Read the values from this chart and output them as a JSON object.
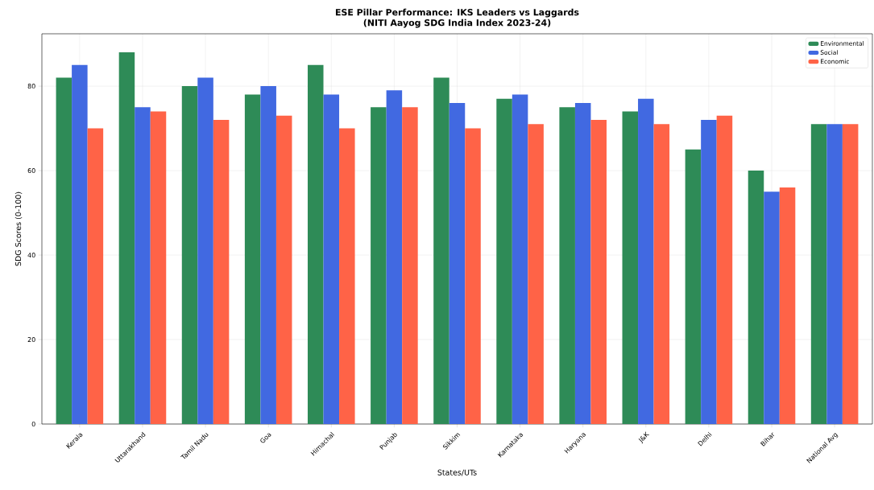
{
  "chart_data": {
    "type": "bar",
    "title": "ESE Pillar Performance: IKS Leaders vs Laggards",
    "subtitle": "(NITI Aayog SDG India Index 2023-24)",
    "xlabel": "States/UTs",
    "ylabel": "SDG Scores (0-100)",
    "categories": [
      "Kerala",
      "Uttarakhand",
      "Tamil Nadu",
      "Goa",
      "Himachal",
      "Punjab",
      "Sikkim",
      "Karnataka",
      "Haryana",
      "J&K",
      "Delhi",
      "Bihar",
      "National Avg"
    ],
    "series": [
      {
        "name": "Environmental",
        "color": "#2e8b57",
        "values": [
          82,
          88,
          80,
          78,
          85,
          75,
          82,
          77,
          75,
          74,
          65,
          60,
          71
        ]
      },
      {
        "name": "Social",
        "color": "#4169e1",
        "values": [
          85,
          75,
          82,
          80,
          78,
          79,
          76,
          78,
          76,
          77,
          72,
          55,
          71
        ]
      },
      {
        "name": "Economic",
        "color": "#ff6347",
        "values": [
          70,
          74,
          72,
          73,
          70,
          75,
          70,
          71,
          72,
          71,
          73,
          56,
          71
        ]
      }
    ],
    "ylim": [
      0,
      92.4
    ],
    "yticks": [
      0,
      20,
      40,
      60,
      80
    ],
    "grid": true,
    "legend": "top right"
  }
}
